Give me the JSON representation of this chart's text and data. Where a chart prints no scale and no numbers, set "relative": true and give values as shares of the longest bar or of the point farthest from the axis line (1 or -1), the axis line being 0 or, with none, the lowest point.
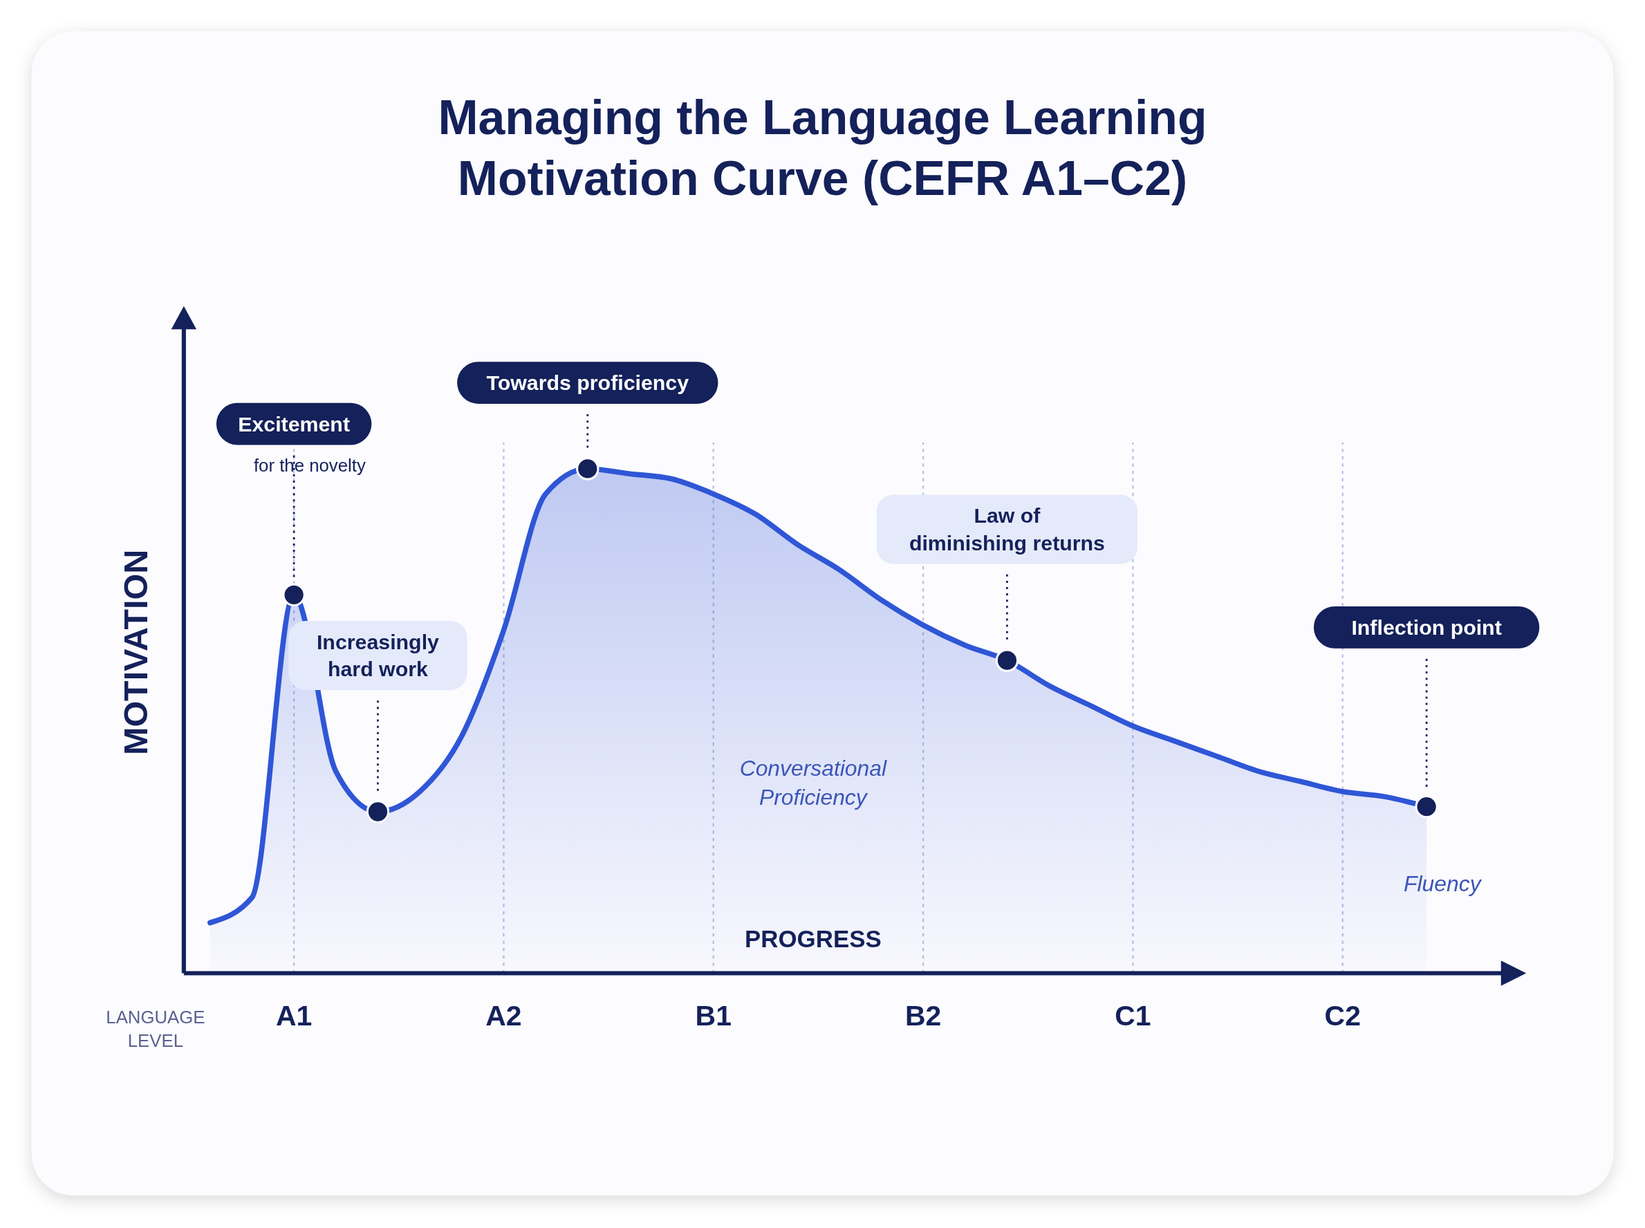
{
  "chart_data": {
    "type": "area",
    "relative": true,
    "title": "Managing the Language Learning Motivation Curve (CEFR A1–C2)",
    "xlabel": "PROGRESS",
    "ylabel": "MOTIVATION",
    "line_style": "solid",
    "grid": "x",
    "categories": [
      null,
      null,
      "A1",
      null,
      null,
      null,
      null,
      "A2",
      null,
      null,
      null,
      null,
      "B1",
      null,
      null,
      null,
      null,
      "B2",
      null,
      null,
      null,
      null,
      "C1",
      null,
      null,
      null,
      null,
      "C2",
      null,
      null
    ],
    "series": [
      {
        "color": "#2f56d6",
        "values": [
          0.1,
          0.15,
          0.75,
          0.4,
          0.32,
          0.36,
          0.47,
          0.68,
          0.95,
          1,
          0.99,
          0.98,
          0.95,
          0.91,
          0.85,
          0.8,
          0.74,
          0.69,
          0.65,
          0.62,
          0.57,
          0.53,
          0.49,
          0.46,
          0.43,
          0.4,
          0.38,
          0.36,
          0.35,
          0.33
        ]
      },
      {
        "type": "scatter",
        "marker": "circle",
        "color": "#14215a",
        "values": [
          null,
          null,
          0.75,
          null,
          0.32,
          null,
          null,
          null,
          null,
          1,
          null,
          null,
          null,
          null,
          null,
          null,
          null,
          null,
          null,
          0.62,
          null,
          null,
          null,
          null,
          null,
          null,
          null,
          null,
          null,
          0.33
        ]
      }
    ],
    "annotations": [
      "Excitement",
      "for the novelty",
      "Increasingly hard work",
      "Towards proficiency",
      "Law of diminishing returns",
      "Inflection point",
      "Conversational Proficiency",
      "Fluency",
      "LANGUAGE LEVEL"
    ]
  }
}
